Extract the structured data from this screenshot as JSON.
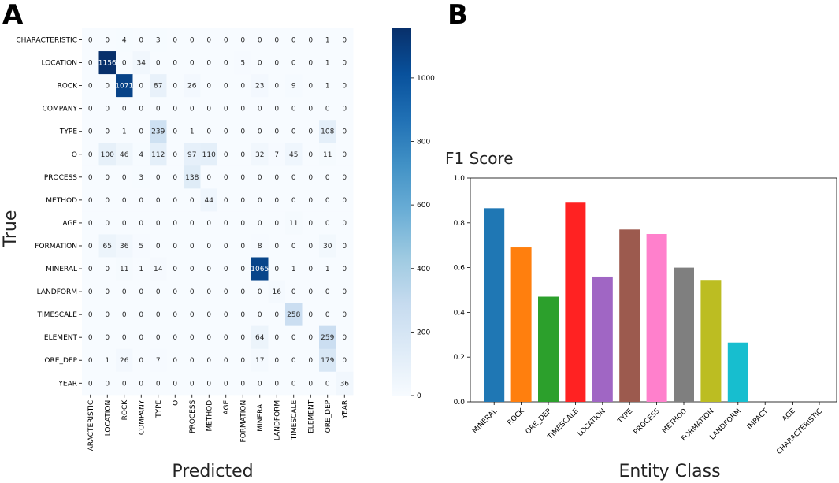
{
  "panels": {
    "a": "A",
    "b": "B"
  },
  "chart_data": [
    {
      "type": "heatmap",
      "title": "",
      "xlabel": "Predicted",
      "ylabel": "True",
      "row_labels": [
        "CHARACTERISTIC",
        "LOCATION",
        "ROCK",
        "COMPANY",
        "TYPE",
        "O",
        "PROCESS",
        "METHOD",
        "AGE",
        "FORMATION",
        "MINERAL",
        "LANDFORM",
        "TIMESCALE",
        "ELEMENT",
        "ORE_DEP",
        "YEAR"
      ],
      "col_labels": [
        "ARACTERISTIC",
        "LOCATION",
        "ROCK",
        "COMPANY",
        "TYPE",
        "O",
        "PROCESS",
        "METHOD",
        "AGE",
        "FORMATION",
        "MINERAL",
        "LANDFORM",
        "TIMESCALE",
        "ELEMENT",
        "ORE_DEP",
        "YEAR"
      ],
      "values": [
        [
          0,
          0,
          4,
          0,
          3,
          0,
          0,
          0,
          0,
          0,
          0,
          0,
          0,
          0,
          1,
          0
        ],
        [
          0,
          1156,
          0,
          34,
          0,
          0,
          0,
          0,
          0,
          5,
          0,
          0,
          0,
          0,
          1,
          0
        ],
        [
          0,
          0,
          1071,
          0,
          87,
          0,
          26,
          0,
          0,
          0,
          23,
          0,
          9,
          0,
          1,
          0
        ],
        [
          0,
          0,
          0,
          0,
          0,
          0,
          0,
          0,
          0,
          0,
          0,
          0,
          0,
          0,
          0,
          0
        ],
        [
          0,
          0,
          1,
          0,
          239,
          0,
          1,
          0,
          0,
          0,
          0,
          0,
          0,
          0,
          108,
          0
        ],
        [
          0,
          100,
          46,
          4,
          112,
          0,
          97,
          110,
          0,
          0,
          32,
          7,
          45,
          0,
          11,
          0
        ],
        [
          0,
          0,
          0,
          3,
          0,
          0,
          138,
          0,
          0,
          0,
          0,
          0,
          0,
          0,
          0,
          0
        ],
        [
          0,
          0,
          0,
          0,
          0,
          0,
          0,
          44,
          0,
          0,
          0,
          0,
          0,
          0,
          0,
          0
        ],
        [
          0,
          0,
          0,
          0,
          0,
          0,
          0,
          0,
          0,
          0,
          0,
          0,
          11,
          0,
          0,
          0
        ],
        [
          0,
          65,
          36,
          5,
          0,
          0,
          0,
          0,
          0,
          0,
          8,
          0,
          0,
          0,
          30,
          0
        ],
        [
          0,
          0,
          11,
          1,
          14,
          0,
          0,
          0,
          0,
          0,
          1065,
          0,
          1,
          0,
          1,
          0
        ],
        [
          0,
          0,
          0,
          0,
          0,
          0,
          0,
          0,
          0,
          0,
          0,
          16,
          0,
          0,
          0,
          0
        ],
        [
          0,
          0,
          0,
          0,
          0,
          0,
          0,
          0,
          0,
          0,
          0,
          0,
          258,
          0,
          0,
          0
        ],
        [
          0,
          0,
          0,
          0,
          0,
          0,
          0,
          0,
          0,
          0,
          64,
          0,
          0,
          0,
          259,
          0
        ],
        [
          0,
          1,
          26,
          0,
          7,
          0,
          0,
          0,
          0,
          0,
          17,
          0,
          0,
          0,
          179,
          0
        ],
        [
          0,
          0,
          0,
          0,
          0,
          0,
          0,
          0,
          0,
          0,
          0,
          0,
          0,
          0,
          0,
          36
        ]
      ],
      "colorbar": {
        "min": 0,
        "max": 1156,
        "ticks": [
          0,
          200,
          400,
          600,
          800,
          1000
        ]
      },
      "colormap": "Blues"
    },
    {
      "type": "bar",
      "title": "F1 Score",
      "xlabel": "Entity Class",
      "ylabel": "",
      "categories": [
        "MINERAL",
        "ROCK",
        "ORE_DEP",
        "TIMESCALE",
        "LOCATION",
        "TYPE",
        "PROCESS",
        "METHOD",
        "FORMATION",
        "LANDFORM",
        "IMPACT",
        "AGE",
        "CHARACTERISTIC"
      ],
      "values": [
        0.865,
        0.69,
        0.47,
        0.89,
        0.56,
        0.77,
        0.75,
        0.6,
        0.545,
        0.265,
        0,
        0,
        0
      ],
      "colors": [
        "#1f77b4",
        "#ff7f0e",
        "#2ca02c",
        "#ff2222",
        "#a066c4",
        "#9c5a4e",
        "#ff80cc",
        "#7f7f7f",
        "#bcbd22",
        "#17becf",
        "#1f77b4",
        "#1f77b4",
        "#1f77b4"
      ],
      "ylim": [
        0,
        1.0
      ],
      "yticks": [
        0.0,
        0.2,
        0.4,
        0.6,
        0.8,
        1.0
      ]
    }
  ]
}
